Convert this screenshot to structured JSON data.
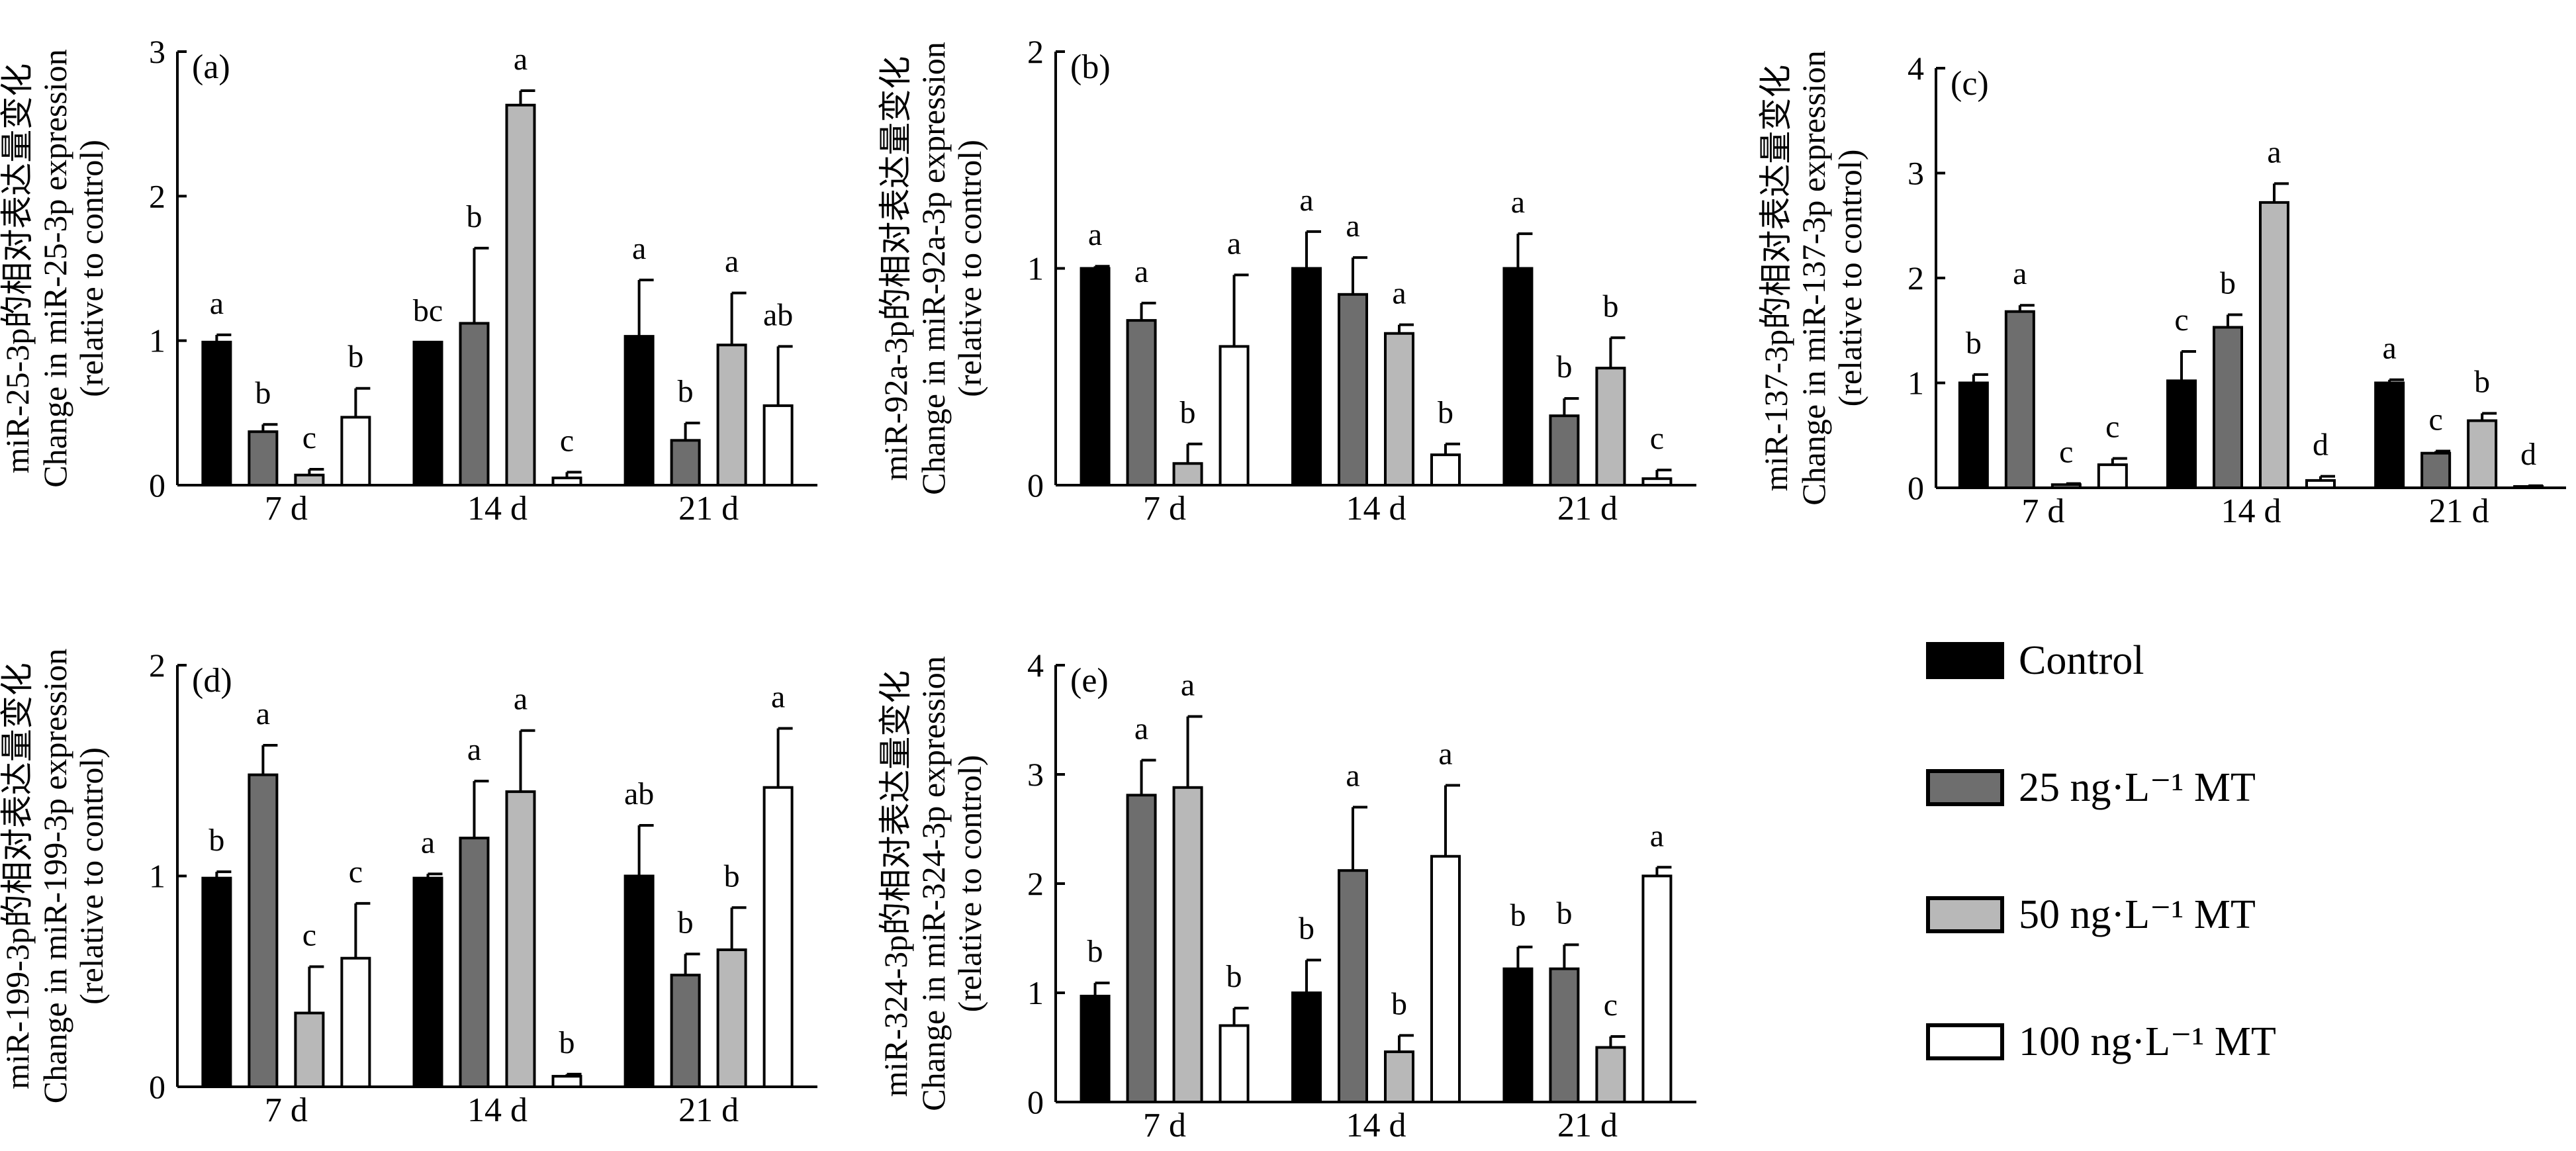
{
  "legend": {
    "items": [
      {
        "label": "Control",
        "color": "#000000"
      },
      {
        "label": "25 ng·L⁻¹ MT",
        "color": "#6e6e6e"
      },
      {
        "label": "50 ng·L⁻¹ MT",
        "color": "#b8b8b8"
      },
      {
        "label": "100 ng·L⁻¹ MT",
        "color": "#ffffff"
      }
    ]
  },
  "chart_data": [
    {
      "type": "bar",
      "panel": "(a)",
      "ylabel_cn": "miR-25-3p的相对表达量变化",
      "ylabel_en": "Change in miR-25-3p expression",
      "ylabel_note": "(relative to control)",
      "categories": [
        "7 d",
        "14 d",
        "21 d"
      ],
      "ylim": [
        0,
        3
      ],
      "yticks": [
        0,
        1,
        2,
        3
      ],
      "series": [
        {
          "name": "Control",
          "values": [
            0.99,
            0.99,
            1.03
          ],
          "errors": [
            0.05,
            0.0,
            0.39
          ],
          "letters": [
            "a",
            "bc",
            "a"
          ]
        },
        {
          "name": "25 ng·L⁻¹ MT",
          "values": [
            0.37,
            1.12,
            0.31
          ],
          "errors": [
            0.05,
            0.52,
            0.12
          ],
          "letters": [
            "b",
            "b",
            "b"
          ]
        },
        {
          "name": "50 ng·L⁻¹ MT",
          "values": [
            0.07,
            2.63,
            0.97
          ],
          "errors": [
            0.04,
            0.1,
            0.36
          ],
          "letters": [
            "c",
            "a",
            "a"
          ]
        },
        {
          "name": "100 ng·L⁻¹ MT",
          "values": [
            0.47,
            0.05,
            0.55
          ],
          "errors": [
            0.2,
            0.04,
            0.41
          ],
          "letters": [
            "b",
            "c",
            "ab"
          ]
        }
      ]
    },
    {
      "type": "bar",
      "panel": "(b)",
      "ylabel_cn": "miR-92a-3p的相对表达量变化",
      "ylabel_en": "Change in miR-92a-3p expression",
      "ylabel_note": "(relative to control)",
      "categories": [
        "7 d",
        "14 d",
        "21 d"
      ],
      "ylim": [
        0,
        2
      ],
      "yticks": [
        0,
        1,
        2
      ],
      "series": [
        {
          "name": "Control",
          "values": [
            1.0,
            1.0,
            1.0
          ],
          "errors": [
            0.01,
            0.17,
            0.16
          ],
          "letters": [
            "a",
            "a",
            "a"
          ]
        },
        {
          "name": "25 ng·L⁻¹ MT",
          "values": [
            0.76,
            0.88,
            0.32
          ],
          "errors": [
            0.08,
            0.17,
            0.08
          ],
          "letters": [
            "a",
            "a",
            "b"
          ]
        },
        {
          "name": "50 ng·L⁻¹ MT",
          "values": [
            0.1,
            0.7,
            0.54
          ],
          "errors": [
            0.09,
            0.04,
            0.14
          ],
          "letters": [
            "b",
            "a",
            "b"
          ]
        },
        {
          "name": "100 ng·L⁻¹ MT",
          "values": [
            0.64,
            0.14,
            0.03
          ],
          "errors": [
            0.33,
            0.05,
            0.04
          ],
          "letters": [
            "a",
            "b",
            "c"
          ]
        }
      ]
    },
    {
      "type": "bar",
      "panel": "(c)",
      "ylabel_cn": "miR-137-3p的相对表达量变化",
      "ylabel_en": "Change in miR-137-3p expression",
      "ylabel_note": "(relative to control)",
      "categories": [
        "7 d",
        "14 d",
        "21 d"
      ],
      "ylim": [
        0,
        4
      ],
      "yticks": [
        0,
        1,
        2,
        3,
        4
      ],
      "series": [
        {
          "name": "Control",
          "values": [
            1.0,
            1.02,
            1.0
          ],
          "errors": [
            0.08,
            0.28,
            0.03
          ],
          "letters": [
            "b",
            "c",
            "a"
          ]
        },
        {
          "name": "25 ng·L⁻¹ MT",
          "values": [
            1.68,
            1.53,
            0.33
          ],
          "errors": [
            0.06,
            0.12,
            0.02
          ],
          "letters": [
            "a",
            "b",
            "c"
          ]
        },
        {
          "name": "50 ng·L⁻¹ MT",
          "values": [
            0.03,
            2.72,
            0.64
          ],
          "errors": [
            0.01,
            0.18,
            0.07
          ],
          "letters": [
            "c",
            "a",
            "b"
          ]
        },
        {
          "name": "100 ng·L⁻¹ MT",
          "values": [
            0.22,
            0.07,
            0.01
          ],
          "errors": [
            0.06,
            0.04,
            0.01
          ],
          "letters": [
            "c",
            "d",
            "d"
          ]
        }
      ]
    },
    {
      "type": "bar",
      "panel": "(d)",
      "ylabel_cn": "miR-199-3p的相对表达量变化",
      "ylabel_en": "Change in miR-199-3p expression",
      "ylabel_note": "(relative to control)",
      "categories": [
        "7 d",
        "14 d",
        "21 d"
      ],
      "ylim": [
        0,
        2
      ],
      "yticks": [
        0,
        1,
        2
      ],
      "series": [
        {
          "name": "Control",
          "values": [
            0.99,
            0.99,
            1.0
          ],
          "errors": [
            0.03,
            0.02,
            0.24
          ],
          "letters": [
            "b",
            "a",
            "ab"
          ]
        },
        {
          "name": "25 ng·L⁻¹ MT",
          "values": [
            1.48,
            1.18,
            0.53
          ],
          "errors": [
            0.14,
            0.27,
            0.1
          ],
          "letters": [
            "a",
            "a",
            "b"
          ]
        },
        {
          "name": "50 ng·L⁻¹ MT",
          "values": [
            0.35,
            1.4,
            0.65
          ],
          "errors": [
            0.22,
            0.29,
            0.2
          ],
          "letters": [
            "c",
            "a",
            "b"
          ]
        },
        {
          "name": "100 ng·L⁻¹ MT",
          "values": [
            0.61,
            0.05,
            1.42
          ],
          "errors": [
            0.26,
            0.01,
            0.28
          ],
          "letters": [
            "c",
            "b",
            "a"
          ]
        }
      ]
    },
    {
      "type": "bar",
      "panel": "(e)",
      "ylabel_cn": "miR-324-3p的相对表达量变化",
      "ylabel_en": "Change in miR-324-3p expression",
      "ylabel_note": "(relative to control)",
      "categories": [
        "7 d",
        "14 d",
        "21 d"
      ],
      "ylim": [
        0,
        4
      ],
      "yticks": [
        0,
        1,
        2,
        3,
        4
      ],
      "series": [
        {
          "name": "Control",
          "values": [
            0.97,
            1.0,
            1.22
          ],
          "errors": [
            0.12,
            0.3,
            0.2
          ],
          "letters": [
            "b",
            "b",
            "b"
          ]
        },
        {
          "name": "25 ng·L⁻¹ MT",
          "values": [
            2.81,
            2.12,
            1.22
          ],
          "errors": [
            0.32,
            0.58,
            0.22
          ],
          "letters": [
            "a",
            "a",
            "b"
          ]
        },
        {
          "name": "50 ng·L⁻¹ MT",
          "values": [
            2.88,
            0.46,
            0.5
          ],
          "errors": [
            0.65,
            0.15,
            0.1
          ],
          "letters": [
            "a",
            "b",
            "c"
          ]
        },
        {
          "name": "100 ng·L⁻¹ MT",
          "values": [
            0.7,
            2.25,
            2.07
          ],
          "errors": [
            0.16,
            0.65,
            0.08
          ],
          "letters": [
            "b",
            "a",
            "a"
          ]
        }
      ]
    }
  ]
}
